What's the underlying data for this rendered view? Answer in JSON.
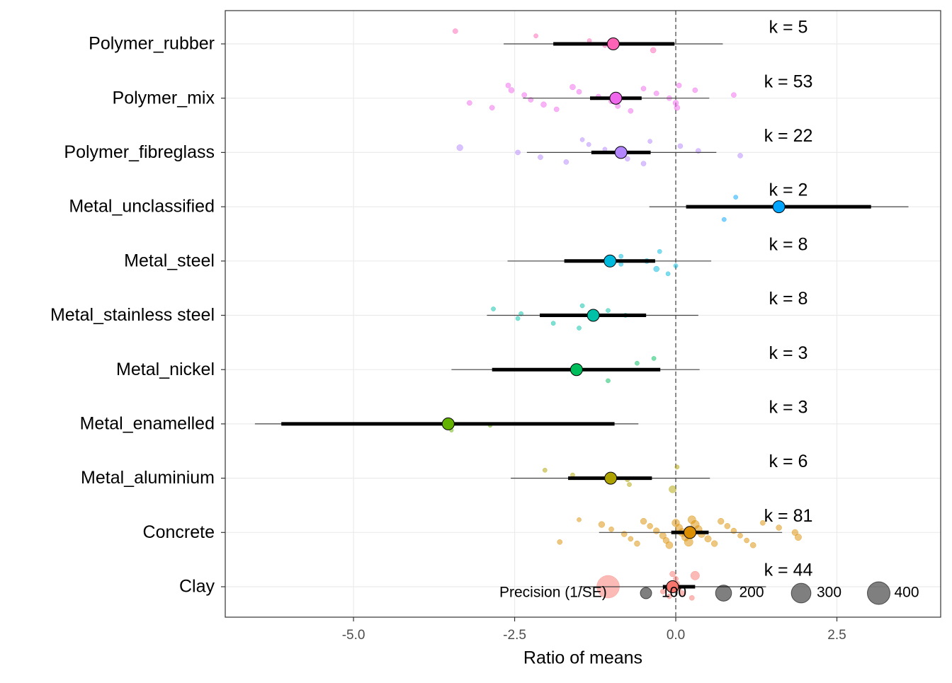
{
  "chart_data": {
    "type": "orchard",
    "x_label": "Ratio of means",
    "xlim": [
      -6.99,
      4.11
    ],
    "xticks": [
      {
        "value": -5,
        "label": "-5.0"
      },
      -2.5,
      {
        "value": 0,
        "label": "0.0"
      },
      2.5
    ],
    "reference_x": 0,
    "grid": true,
    "legend": {
      "title": "Precision (1/SE)",
      "sizes": [
        100,
        200,
        300,
        400
      ],
      "corner": "bottom-right"
    },
    "series": [
      {
        "name": "Polymer_rubber",
        "color": "#FF63B6",
        "estimate": -0.97,
        "ci": [
          -1.9,
          -0.02
        ],
        "pi": [
          -2.67,
          0.73
        ],
        "k_label": "k = 5",
        "points": {
          "values": [
            -3.42,
            -2.17,
            -1.34,
            -1.1,
            -0.35
          ],
          "precision": [
            20,
            15,
            15,
            15,
            25
          ]
        }
      },
      {
        "name": "Polymer_mix",
        "color": "#EF67EB",
        "estimate": -0.93,
        "ci": [
          -1.33,
          -0.53
        ],
        "pi": [
          -2.37,
          0.52
        ],
        "k_label": "k = 53",
        "points": {
          "values": [
            -3.2,
            -2.85,
            -2.6,
            -2.55,
            -2.35,
            -2.25,
            -2.05,
            -1.85,
            -1.6,
            -1.5,
            -1.2,
            -1.0,
            -0.9,
            -0.7,
            -0.5,
            -0.3,
            -0.1,
            0.0,
            0.02,
            0.05,
            0.3,
            0.9
          ],
          "precision": [
            20,
            20,
            20,
            25,
            20,
            20,
            25,
            20,
            25,
            20,
            20,
            20,
            20,
            20,
            20,
            20,
            20,
            25,
            25,
            20,
            20,
            20
          ]
        }
      },
      {
        "name": "Polymer_fibreglass",
        "color": "#B385FF",
        "estimate": -0.85,
        "ci": [
          -1.31,
          -0.39
        ],
        "pi": [
          -2.31,
          0.63
        ],
        "k_label": "k = 22",
        "points": {
          "values": [
            -3.35,
            -2.45,
            -2.1,
            -1.7,
            -1.45,
            -1.35,
            -1.1,
            -0.9,
            -0.75,
            -0.5,
            -0.4,
            0.07,
            0.35,
            1.0
          ],
          "precision": [
            30,
            20,
            20,
            20,
            15,
            15,
            15,
            20,
            20,
            20,
            15,
            20,
            20,
            20
          ]
        }
      },
      {
        "name": "Metal_unclassified",
        "color": "#00A6FF",
        "estimate": 1.6,
        "ci": [
          0.16,
          3.03
        ],
        "pi": [
          -0.41,
          3.61
        ],
        "k_label": "k = 2",
        "points": {
          "values": [
            0.75,
            0.93
          ],
          "precision": [
            15,
            15
          ]
        }
      },
      {
        "name": "Metal_steel",
        "color": "#00BADE",
        "estimate": -1.02,
        "ci": [
          -1.73,
          -0.32
        ],
        "pi": [
          -2.61,
          0.55
        ],
        "k_label": "k = 8",
        "points": {
          "values": [
            -0.85,
            -0.3,
            -0.12,
            -0.25,
            -0.85,
            -0.45,
            0.0
          ],
          "precision": [
            15,
            25,
            15,
            15,
            15,
            20,
            15
          ]
        }
      },
      {
        "name": "Metal_stainless steel",
        "color": "#00C1A7",
        "estimate": -1.28,
        "ci": [
          -2.11,
          -0.46
        ],
        "pi": [
          -2.93,
          0.35
        ],
        "k_label": "k = 8",
        "points": {
          "values": [
            -2.83,
            -2.4,
            -2.45,
            -1.9,
            -1.5,
            -1.45,
            -1.05,
            -0.78
          ],
          "precision": [
            15,
            15,
            15,
            15,
            15,
            15,
            15,
            15
          ]
        }
      },
      {
        "name": "Metal_nickel",
        "color": "#00BD5C",
        "estimate": -1.54,
        "ci": [
          -2.85,
          -0.24
        ],
        "pi": [
          -3.48,
          0.37
        ],
        "k_label": "k = 3",
        "points": {
          "values": [
            -1.05,
            -0.34,
            -0.6
          ],
          "precision": [
            15,
            15,
            15
          ]
        }
      },
      {
        "name": "Metal_enamelled",
        "color": "#64B200",
        "estimate": -3.53,
        "ci": [
          -6.12,
          -0.95
        ],
        "pi": [
          -6.53,
          -0.58
        ],
        "k_label": "k = 3",
        "points": {
          "values": [
            -2.88,
            -3.48
          ],
          "precision": [
            12,
            12
          ]
        }
      },
      {
        "name": "Metal_aluminium",
        "color": "#AEA200",
        "estimate": -1.01,
        "ci": [
          -1.67,
          -0.37
        ],
        "pi": [
          -2.56,
          0.53
        ],
        "k_label": "k = 6",
        "points": {
          "values": [
            -2.03,
            -1.6,
            -0.75,
            -0.72,
            -0.05,
            0.02
          ],
          "precision": [
            15,
            15,
            15,
            15,
            40,
            15
          ]
        }
      },
      {
        "name": "Concrete",
        "color": "#DB8E00",
        "estimate": 0.22,
        "ci": [
          -0.07,
          0.51
        ],
        "pi": [
          -1.19,
          1.65
        ],
        "k_label": "k = 81",
        "points": {
          "values": [
            -1.8,
            -1.5,
            -1.15,
            -1.0,
            -0.8,
            -0.7,
            -0.6,
            -0.5,
            -0.4,
            -0.3,
            -0.2,
            -0.15,
            -0.1,
            0.0,
            0.05,
            0.1,
            0.15,
            0.2,
            0.25,
            0.3,
            0.35,
            0.4,
            0.5,
            0.6,
            0.7,
            0.8,
            0.9,
            1.0,
            1.1,
            1.2,
            1.35,
            1.6,
            1.85,
            1.9
          ],
          "precision": [
            20,
            15,
            30,
            20,
            25,
            20,
            25,
            30,
            25,
            30,
            35,
            30,
            40,
            45,
            40,
            50,
            45,
            60,
            50,
            55,
            45,
            40,
            35,
            30,
            30,
            25,
            25,
            20,
            20,
            25,
            20,
            25,
            30,
            35
          ]
        }
      },
      {
        "name": "Clay",
        "color": "#F8766D",
        "estimate": -0.05,
        "ci": [
          -0.2,
          0.3
        ],
        "pi": [
          -1.5,
          1.4
        ],
        "k_label": "k = 44",
        "points": {
          "values": [
            -1.05,
            -0.2,
            -0.1,
            -0.05,
            0.0,
            0.02,
            0.05,
            0.1,
            0.25,
            0.3
          ],
          "precision": [
            400,
            20,
            20,
            25,
            20,
            20,
            25,
            20,
            20,
            60
          ]
        }
      }
    ]
  }
}
